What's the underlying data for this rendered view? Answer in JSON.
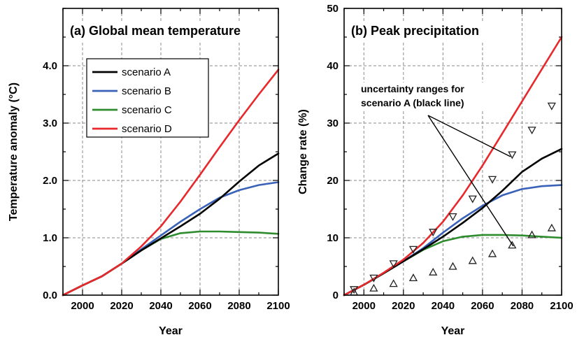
{
  "chart_data": [
    {
      "type": "line",
      "title": "(a) Global mean temperature",
      "xlabel": "Year",
      "ylabel": "Temperature anomaly (°C)",
      "xlim": [
        1990,
        2100
      ],
      "ylim": [
        0,
        5
      ],
      "xticks": [
        2000,
        2020,
        2040,
        2060,
        2080,
        2100
      ],
      "yticks": [
        0,
        1,
        2,
        3,
        4
      ],
      "ytick_labels": [
        "0.0",
        "1.0",
        "2.0",
        "3.0",
        "4.0"
      ],
      "grid": true,
      "legend_position": "top-left",
      "series": [
        {
          "name": "scenario A",
          "color": "#000000",
          "x": [
            1990,
            2000,
            2010,
            2020,
            2030,
            2040,
            2050,
            2060,
            2070,
            2080,
            2090,
            2100
          ],
          "y": [
            0.0,
            0.17,
            0.33,
            0.55,
            0.78,
            0.99,
            1.2,
            1.42,
            1.68,
            1.98,
            2.26,
            2.47
          ]
        },
        {
          "name": "scenario B",
          "color": "#3a62b8",
          "x": [
            1990,
            2000,
            2010,
            2020,
            2030,
            2040,
            2050,
            2060,
            2070,
            2080,
            2090,
            2100
          ],
          "y": [
            0.0,
            0.17,
            0.33,
            0.55,
            0.8,
            1.04,
            1.28,
            1.5,
            1.7,
            1.83,
            1.92,
            1.97
          ]
        },
        {
          "name": "scenario C",
          "color": "#2e8b2e",
          "x": [
            1990,
            2000,
            2010,
            2020,
            2030,
            2040,
            2050,
            2060,
            2070,
            2080,
            2090,
            2100
          ],
          "y": [
            0.0,
            0.17,
            0.33,
            0.55,
            0.78,
            0.98,
            1.08,
            1.11,
            1.11,
            1.1,
            1.09,
            1.07
          ]
        },
        {
          "name": "scenario D",
          "color": "#e8282b",
          "x": [
            1990,
            2000,
            2010,
            2020,
            2030,
            2040,
            2050,
            2060,
            2070,
            2080,
            2090,
            2100
          ],
          "y": [
            0.0,
            0.17,
            0.33,
            0.55,
            0.85,
            1.2,
            1.63,
            2.1,
            2.58,
            3.05,
            3.5,
            3.93
          ]
        }
      ]
    },
    {
      "type": "line",
      "title": "(b) Peak precipitation",
      "xlabel": "Year",
      "ylabel": "Change rate (%)",
      "xlim": [
        1990,
        2100
      ],
      "ylim": [
        0,
        50
      ],
      "xticks": [
        2000,
        2020,
        2040,
        2060,
        2080,
        2100
      ],
      "yticks": [
        0,
        10,
        20,
        30,
        40,
        50
      ],
      "grid": true,
      "annotation": {
        "lines": [
          "uncertainty ranges for",
          "scenario A (black line)"
        ]
      },
      "series": [
        {
          "name": "scenario A",
          "color": "#000000",
          "x": [
            1990,
            2000,
            2010,
            2020,
            2030,
            2040,
            2050,
            2060,
            2070,
            2080,
            2090,
            2100
          ],
          "y": [
            0.0,
            1.8,
            3.8,
            5.9,
            8.0,
            10.2,
            12.6,
            15.2,
            18.2,
            21.5,
            23.8,
            25.5
          ]
        },
        {
          "name": "scenario B",
          "color": "#3a62b8",
          "x": [
            1990,
            2000,
            2010,
            2020,
            2030,
            2040,
            2050,
            2060,
            2070,
            2080,
            2090,
            2100
          ],
          "y": [
            0.0,
            1.8,
            3.8,
            5.9,
            8.2,
            10.9,
            13.4,
            15.6,
            17.4,
            18.5,
            19.0,
            19.2
          ]
        },
        {
          "name": "scenario C",
          "color": "#2e8b2e",
          "x": [
            1990,
            2000,
            2010,
            2020,
            2030,
            2040,
            2050,
            2060,
            2070,
            2080,
            2090,
            2100
          ],
          "y": [
            0.0,
            1.8,
            3.8,
            5.9,
            7.9,
            9.4,
            10.2,
            10.5,
            10.5,
            10.4,
            10.2,
            10.0
          ]
        },
        {
          "name": "scenario D",
          "color": "#e8282b",
          "x": [
            1990,
            2000,
            2010,
            2020,
            2030,
            2040,
            2050,
            2060,
            2070,
            2080,
            2090,
            2100
          ],
          "y": [
            0.0,
            1.8,
            3.9,
            6.2,
            9.1,
            12.8,
            17.4,
            22.6,
            28.2,
            33.8,
            39.4,
            45.0
          ]
        }
      ],
      "range_markers": {
        "upper": {
          "marker": "down-triangle",
          "x": [
            1995,
            2005,
            2015,
            2025,
            2035,
            2045,
            2055,
            2065,
            2075,
            2085,
            2095
          ],
          "y": [
            1.0,
            3.0,
            5.5,
            8.0,
            11.0,
            13.7,
            16.8,
            20.2,
            24.5,
            28.8,
            33.0
          ]
        },
        "lower": {
          "marker": "up-triangle",
          "x": [
            1995,
            2005,
            2015,
            2025,
            2035,
            2045,
            2055,
            2065,
            2075,
            2085,
            2095
          ],
          "y": [
            0.5,
            1.2,
            2.0,
            3.0,
            4.0,
            5.0,
            6.0,
            7.2,
            8.7,
            10.5,
            11.7
          ]
        }
      }
    }
  ]
}
